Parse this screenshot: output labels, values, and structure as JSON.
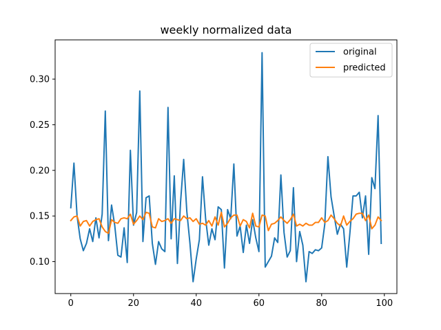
{
  "chart_data": {
    "type": "line",
    "title": "weekly normalized data",
    "xlabel": "",
    "ylabel": "",
    "xlim": [
      -5,
      104
    ],
    "ylim": [
      0.065,
      0.343
    ],
    "xticks": [
      0,
      20,
      40,
      60,
      80,
      100
    ],
    "xtick_labels": [
      "0",
      "20",
      "40",
      "60",
      "80",
      "100"
    ],
    "yticks": [
      0.1,
      0.15,
      0.2,
      0.25,
      0.3
    ],
    "ytick_labels": [
      "0.10",
      "0.15",
      "0.20",
      "0.25",
      "0.30"
    ],
    "grid": false,
    "legend_position": "top-right",
    "x": [
      0,
      1,
      2,
      3,
      4,
      5,
      6,
      7,
      8,
      9,
      10,
      11,
      12,
      13,
      14,
      15,
      16,
      17,
      18,
      19,
      20,
      21,
      22,
      23,
      24,
      25,
      26,
      27,
      28,
      29,
      30,
      31,
      32,
      33,
      34,
      35,
      36,
      37,
      38,
      39,
      40,
      41,
      42,
      43,
      44,
      45,
      46,
      47,
      48,
      49,
      50,
      51,
      52,
      53,
      54,
      55,
      56,
      57,
      58,
      59,
      60,
      61,
      62,
      63,
      64,
      65,
      66,
      67,
      68,
      69,
      70,
      71,
      72,
      73,
      74,
      75,
      76,
      77,
      78,
      79,
      80,
      81,
      82,
      83,
      84,
      85,
      86,
      87,
      88,
      89,
      90,
      91,
      92,
      93,
      94,
      95,
      96,
      97,
      98,
      99
    ],
    "series": [
      {
        "name": "original",
        "color": "#1f77b4",
        "values": [
          0.159,
          0.208,
          0.15,
          0.125,
          0.112,
          0.12,
          0.136,
          0.122,
          0.148,
          0.126,
          0.152,
          0.265,
          0.123,
          0.162,
          0.14,
          0.107,
          0.105,
          0.137,
          0.099,
          0.222,
          0.14,
          0.154,
          0.287,
          0.122,
          0.17,
          0.172,
          0.12,
          0.097,
          0.122,
          0.114,
          0.111,
          0.269,
          0.125,
          0.194,
          0.098,
          0.165,
          0.212,
          0.155,
          0.12,
          0.078,
          0.103,
          0.124,
          0.193,
          0.147,
          0.118,
          0.136,
          0.124,
          0.16,
          0.157,
          0.093,
          0.157,
          0.147,
          0.207,
          0.128,
          0.139,
          0.11,
          0.14,
          0.12,
          0.146,
          0.126,
          0.111,
          0.329,
          0.094,
          0.1,
          0.106,
          0.126,
          0.121,
          0.195,
          0.132,
          0.105,
          0.112,
          0.181,
          0.1,
          0.133,
          0.118,
          0.078,
          0.111,
          0.109,
          0.113,
          0.112,
          0.115,
          0.141,
          0.215,
          0.171,
          0.15,
          0.13,
          0.141,
          0.136,
          0.094,
          0.131,
          0.172,
          0.172,
          0.176,
          0.148,
          0.172,
          0.108,
          0.192,
          0.18,
          0.26,
          0.12
        ]
      },
      {
        "name": "predicted",
        "color": "#ff7f0e",
        "values": [
          0.145,
          0.149,
          0.15,
          0.139,
          0.144,
          0.145,
          0.139,
          0.144,
          0.146,
          0.147,
          0.138,
          0.133,
          0.131,
          0.146,
          0.143,
          0.142,
          0.147,
          0.148,
          0.147,
          0.152,
          0.141,
          0.145,
          0.15,
          0.146,
          0.154,
          0.153,
          0.138,
          0.137,
          0.147,
          0.144,
          0.145,
          0.147,
          0.142,
          0.147,
          0.146,
          0.145,
          0.15,
          0.147,
          0.148,
          0.144,
          0.147,
          0.141,
          0.142,
          0.14,
          0.145,
          0.139,
          0.149,
          0.14,
          0.154,
          0.138,
          0.142,
          0.148,
          0.151,
          0.151,
          0.139,
          0.146,
          0.144,
          0.137,
          0.153,
          0.139,
          0.138,
          0.151,
          0.15,
          0.134,
          0.141,
          0.142,
          0.145,
          0.149,
          0.145,
          0.142,
          0.146,
          0.152,
          0.139,
          0.141,
          0.139,
          0.142,
          0.14,
          0.14,
          0.143,
          0.143,
          0.148,
          0.143,
          0.145,
          0.151,
          0.147,
          0.142,
          0.139,
          0.15,
          0.14,
          0.144,
          0.147,
          0.152,
          0.153,
          0.153,
          0.145,
          0.151,
          0.136,
          0.14,
          0.149,
          0.145
        ]
      }
    ]
  }
}
